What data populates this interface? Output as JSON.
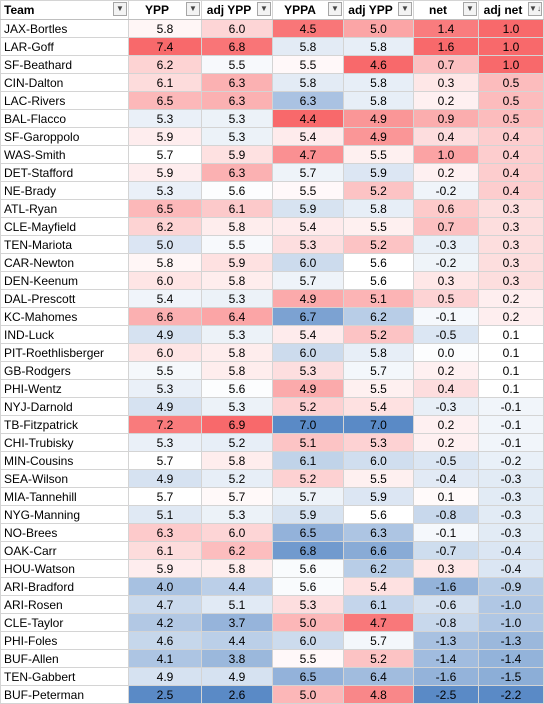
{
  "headers": {
    "team": "Team",
    "ypp": "YPP",
    "adj_ypp": "adj YPP",
    "yppa": "YPPA",
    "adj_yppa": "adj YPP",
    "net": "net",
    "adj_net": "adj net"
  },
  "icons": {
    "filter": "filter-dropdown-icon",
    "sorted": "sort-descending-filter-icon"
  },
  "colors": {
    "high": "#f8696b",
    "mid": "#ffffff",
    "low": "#5a8ac6"
  },
  "rows": [
    {
      "team": "JAX-Bortles",
      "ypp": "5.8",
      "adj_ypp": "6.0",
      "yppa": "4.5",
      "adj_yppa": "5.0",
      "net": "1.4",
      "adj_net": "1.0"
    },
    {
      "team": "LAR-Goff",
      "ypp": "7.4",
      "adj_ypp": "6.8",
      "yppa": "5.8",
      "adj_yppa": "5.8",
      "net": "1.6",
      "adj_net": "1.0"
    },
    {
      "team": "SF-Beathard",
      "ypp": "6.2",
      "adj_ypp": "5.5",
      "yppa": "5.5",
      "adj_yppa": "4.6",
      "net": "0.7",
      "adj_net": "1.0"
    },
    {
      "team": "CIN-Dalton",
      "ypp": "6.1",
      "adj_ypp": "6.3",
      "yppa": "5.8",
      "adj_yppa": "5.8",
      "net": "0.3",
      "adj_net": "0.5"
    },
    {
      "team": "LAC-Rivers",
      "ypp": "6.5",
      "adj_ypp": "6.3",
      "yppa": "6.3",
      "adj_yppa": "5.8",
      "net": "0.2",
      "adj_net": "0.5"
    },
    {
      "team": "BAL-Flacco",
      "ypp": "5.3",
      "adj_ypp": "5.3",
      "yppa": "4.4",
      "adj_yppa": "4.9",
      "net": "0.9",
      "adj_net": "0.5"
    },
    {
      "team": "SF-Garoppolo",
      "ypp": "5.9",
      "adj_ypp": "5.3",
      "yppa": "5.4",
      "adj_yppa": "4.9",
      "net": "0.4",
      "adj_net": "0.4"
    },
    {
      "team": "WAS-Smith",
      "ypp": "5.7",
      "adj_ypp": "5.9",
      "yppa": "4.7",
      "adj_yppa": "5.5",
      "net": "1.0",
      "adj_net": "0.4"
    },
    {
      "team": "DET-Stafford",
      "ypp": "5.9",
      "adj_ypp": "6.3",
      "yppa": "5.7",
      "adj_yppa": "5.9",
      "net": "0.2",
      "adj_net": "0.4"
    },
    {
      "team": "NE-Brady",
      "ypp": "5.3",
      "adj_ypp": "5.6",
      "yppa": "5.5",
      "adj_yppa": "5.2",
      "net": "-0.2",
      "adj_net": "0.4"
    },
    {
      "team": "ATL-Ryan",
      "ypp": "6.5",
      "adj_ypp": "6.1",
      "yppa": "5.9",
      "adj_yppa": "5.8",
      "net": "0.6",
      "adj_net": "0.3"
    },
    {
      "team": "CLE-Mayfield",
      "ypp": "6.2",
      "adj_ypp": "5.8",
      "yppa": "5.4",
      "adj_yppa": "5.5",
      "net": "0.7",
      "adj_net": "0.3"
    },
    {
      "team": "TEN-Mariota",
      "ypp": "5.0",
      "adj_ypp": "5.5",
      "yppa": "5.3",
      "adj_yppa": "5.2",
      "net": "-0.3",
      "adj_net": "0.3"
    },
    {
      "team": "CAR-Newton",
      "ypp": "5.8",
      "adj_ypp": "5.9",
      "yppa": "6.0",
      "adj_yppa": "5.6",
      "net": "-0.2",
      "adj_net": "0.3"
    },
    {
      "team": "DEN-Keenum",
      "ypp": "6.0",
      "adj_ypp": "5.8",
      "yppa": "5.7",
      "adj_yppa": "5.6",
      "net": "0.3",
      "adj_net": "0.3"
    },
    {
      "team": "DAL-Prescott",
      "ypp": "5.4",
      "adj_ypp": "5.3",
      "yppa": "4.9",
      "adj_yppa": "5.1",
      "net": "0.5",
      "adj_net": "0.2"
    },
    {
      "team": "KC-Mahomes",
      "ypp": "6.6",
      "adj_ypp": "6.4",
      "yppa": "6.7",
      "adj_yppa": "6.2",
      "net": "-0.1",
      "adj_net": "0.2"
    },
    {
      "team": "IND-Luck",
      "ypp": "4.9",
      "adj_ypp": "5.3",
      "yppa": "5.4",
      "adj_yppa": "5.2",
      "net": "-0.5",
      "adj_net": "0.1"
    },
    {
      "team": "PIT-Roethlisberger",
      "ypp": "6.0",
      "adj_ypp": "5.8",
      "yppa": "6.0",
      "adj_yppa": "5.8",
      "net": "0.0",
      "adj_net": "0.1"
    },
    {
      "team": "GB-Rodgers",
      "ypp": "5.5",
      "adj_ypp": "5.8",
      "yppa": "5.3",
      "adj_yppa": "5.7",
      "net": "0.2",
      "adj_net": "0.1"
    },
    {
      "team": "PHI-Wentz",
      "ypp": "5.3",
      "adj_ypp": "5.6",
      "yppa": "4.9",
      "adj_yppa": "5.5",
      "net": "0.4",
      "adj_net": "0.1"
    },
    {
      "team": "NYJ-Darnold",
      "ypp": "4.9",
      "adj_ypp": "5.3",
      "yppa": "5.2",
      "adj_yppa": "5.4",
      "net": "-0.3",
      "adj_net": "-0.1"
    },
    {
      "team": "TB-Fitzpatrick",
      "ypp": "7.2",
      "adj_ypp": "6.9",
      "yppa": "7.0",
      "adj_yppa": "7.0",
      "net": "0.2",
      "adj_net": "-0.1"
    },
    {
      "team": "CHI-Trubisky",
      "ypp": "5.3",
      "adj_ypp": "5.2",
      "yppa": "5.1",
      "adj_yppa": "5.3",
      "net": "0.2",
      "adj_net": "-0.1"
    },
    {
      "team": "MIN-Cousins",
      "ypp": "5.7",
      "adj_ypp": "5.8",
      "yppa": "6.1",
      "adj_yppa": "6.0",
      "net": "-0.5",
      "adj_net": "-0.2"
    },
    {
      "team": "SEA-Wilson",
      "ypp": "4.9",
      "adj_ypp": "5.2",
      "yppa": "5.2",
      "adj_yppa": "5.5",
      "net": "-0.4",
      "adj_net": "-0.3"
    },
    {
      "team": "MIA-Tannehill",
      "ypp": "5.7",
      "adj_ypp": "5.7",
      "yppa": "5.7",
      "adj_yppa": "5.9",
      "net": "0.1",
      "adj_net": "-0.3"
    },
    {
      "team": "NYG-Manning",
      "ypp": "5.1",
      "adj_ypp": "5.3",
      "yppa": "5.9",
      "adj_yppa": "5.6",
      "net": "-0.8",
      "adj_net": "-0.3"
    },
    {
      "team": "NO-Brees",
      "ypp": "6.3",
      "adj_ypp": "6.0",
      "yppa": "6.5",
      "adj_yppa": "6.3",
      "net": "-0.1",
      "adj_net": "-0.3"
    },
    {
      "team": "OAK-Carr",
      "ypp": "6.1",
      "adj_ypp": "6.2",
      "yppa": "6.8",
      "adj_yppa": "6.6",
      "net": "-0.7",
      "adj_net": "-0.4"
    },
    {
      "team": "HOU-Watson",
      "ypp": "5.9",
      "adj_ypp": "5.8",
      "yppa": "5.6",
      "adj_yppa": "6.2",
      "net": "0.3",
      "adj_net": "-0.4"
    },
    {
      "team": "ARI-Bradford",
      "ypp": "4.0",
      "adj_ypp": "4.4",
      "yppa": "5.6",
      "adj_yppa": "5.4",
      "net": "-1.6",
      "adj_net": "-0.9"
    },
    {
      "team": "ARI-Rosen",
      "ypp": "4.7",
      "adj_ypp": "5.1",
      "yppa": "5.3",
      "adj_yppa": "6.1",
      "net": "-0.6",
      "adj_net": "-1.0"
    },
    {
      "team": "CLE-Taylor",
      "ypp": "4.2",
      "adj_ypp": "3.7",
      "yppa": "5.0",
      "adj_yppa": "4.7",
      "net": "-0.8",
      "adj_net": "-1.0"
    },
    {
      "team": "PHI-Foles",
      "ypp": "4.6",
      "adj_ypp": "4.4",
      "yppa": "6.0",
      "adj_yppa": "5.7",
      "net": "-1.3",
      "adj_net": "-1.3"
    },
    {
      "team": "BUF-Allen",
      "ypp": "4.1",
      "adj_ypp": "3.8",
      "yppa": "5.5",
      "adj_yppa": "5.2",
      "net": "-1.4",
      "adj_net": "-1.4"
    },
    {
      "team": "TEN-Gabbert",
      "ypp": "4.9",
      "adj_ypp": "4.9",
      "yppa": "6.5",
      "adj_yppa": "6.4",
      "net": "-1.6",
      "adj_net": "-1.5"
    },
    {
      "team": "BUF-Peterman",
      "ypp": "2.5",
      "adj_ypp": "2.6",
      "yppa": "5.0",
      "adj_yppa": "4.8",
      "net": "-2.5",
      "adj_net": "-2.2"
    }
  ]
}
